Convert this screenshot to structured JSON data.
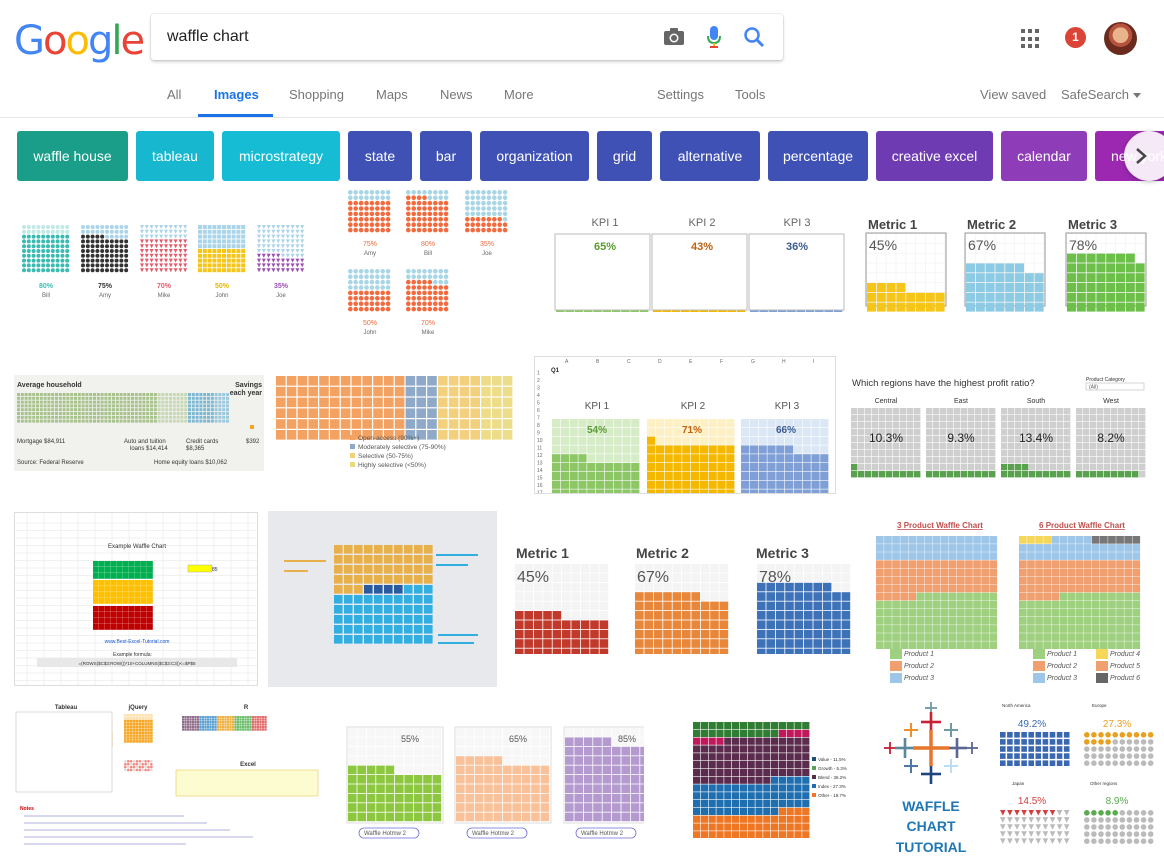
{
  "logo": "Google",
  "search": {
    "query": "waffle chart"
  },
  "notifications": {
    "count": "1"
  },
  "tabs": [
    "All",
    "Images",
    "Shopping",
    "Maps",
    "News",
    "More"
  ],
  "settings": "Settings",
  "tools": "Tools",
  "view_saved": "View saved",
  "safesearch": "SafeSearch",
  "chips": [
    {
      "label": "waffle house",
      "color": "#1a9e8a"
    },
    {
      "label": "tableau",
      "color": "#17b7cf"
    },
    {
      "label": "microstrategy",
      "color": "#16bcd4"
    },
    {
      "label": "state",
      "color": "#3f51b5"
    },
    {
      "label": "bar",
      "color": "#3f51b5"
    },
    {
      "label": "organization",
      "color": "#3f51b5"
    },
    {
      "label": "grid",
      "color": "#3f51b5"
    },
    {
      "label": "alternative",
      "color": "#3f51b5"
    },
    {
      "label": "percentage",
      "color": "#3f51b5"
    },
    {
      "label": "creative excel",
      "color": "#6f3bb3"
    },
    {
      "label": "calendar",
      "color": "#8e3cb8"
    },
    {
      "label": "new york",
      "color": "#9c27b0"
    }
  ],
  "results": {
    "r1": {
      "names": [
        "Bill",
        "Amy",
        "Mike",
        "John",
        "Joe"
      ],
      "values": [
        "80%",
        "75%",
        "70%",
        "50%",
        "35%"
      ]
    },
    "r2": {
      "names": [
        "Amy",
        "Bill",
        "Joe",
        "John",
        "Mike"
      ],
      "values": [
        "75%",
        "80%",
        "35%",
        "50%",
        "70%"
      ]
    },
    "r3": {
      "labels": [
        "KPI 1",
        "KPI 2",
        "KPI 3"
      ],
      "values": [
        "65%",
        "43%",
        "36%"
      ]
    },
    "r4": {
      "labels": [
        "Metric 1",
        "Metric 2",
        "Metric 3"
      ],
      "values": [
        "45%",
        "67%",
        "78%"
      ]
    },
    "r5": {
      "title": "Average household",
      "title2": "Savings",
      "title3": "each year",
      "mortgage": "Mortgage $84,911",
      "auto": "Auto and tuition",
      "auto2": "loans $14,414",
      "credit": "Credit cards",
      "credit2": "$8,365",
      "amount": "$392",
      "source": "Source: Federal Reserve",
      "home": "Home equity loans $10,062"
    },
    "r6": {
      "legend": [
        "Open-access (90%+)",
        "Moderately selective (75-90%)",
        "Selective (50-75%)",
        "Highly selective (<50%)"
      ],
      "colors": [
        "#f4a261",
        "#8fa9c9",
        "#f3d07e",
        "#e8dc7a"
      ]
    },
    "r7": {
      "labels": [
        "KPI 1",
        "KPI 2",
        "KPI 3"
      ],
      "values": [
        "54%",
        "71%",
        "66%"
      ],
      "cell": "Q1"
    },
    "r8": {
      "title": "Which regions have the highest profit ratio?",
      "filter": "Product Category",
      "filter_value": "(All)",
      "regions": [
        "Central",
        "East",
        "South",
        "West"
      ],
      "values": [
        "10.3%",
        "9.3%",
        "13.4%",
        "8.2%"
      ]
    },
    "r9": {
      "title": "Example Waffle Chart",
      "cell": "85",
      "link": "www.Best-Excel-Tutorial.com",
      "formula_label": "Example formula:",
      "formula": "=(ROWS($C$3:ROW())*10+COLUMNS($C$3:C3))<=$P$5"
    },
    "r11": {
      "labels": [
        "Metric 1",
        "Metric 2",
        "Metric 3"
      ],
      "values": [
        "45%",
        "67%",
        "78%"
      ]
    },
    "r12": {
      "title_a": "3 Product Waffle Chart",
      "title_b": "6 Product Waffle Chart",
      "legend_a": [
        "Product 1",
        "Product 2",
        "Product 3"
      ],
      "legend_b": [
        "Product 1",
        "Product 2",
        "Product 3",
        "Product 4",
        "Product 5",
        "Product 6"
      ]
    },
    "r13": {
      "tableau": "Tableau",
      "jquery": "jQuery",
      "r": "R",
      "excel": "Excel",
      "notes": "Notes"
    },
    "r14": {
      "values": [
        "55%",
        "65%",
        "85%"
      ],
      "caption": "Waffle Hotmw 2"
    },
    "r15": {
      "legend": [
        "Value - 11.5%",
        "Growth - 5.3%",
        "Blend - 36.2%",
        "Index - 27.3%",
        "Other - 19.7%"
      ]
    },
    "r16": {
      "line1": "WAFFLE",
      "line2": "CHART",
      "line3": "TUTORIAL"
    },
    "r17": {
      "regions": [
        "North America",
        "Europe",
        "Japan",
        "Other regions"
      ],
      "values": [
        "49.2%",
        "27.3%",
        "14.5%",
        "8.9%"
      ]
    }
  }
}
